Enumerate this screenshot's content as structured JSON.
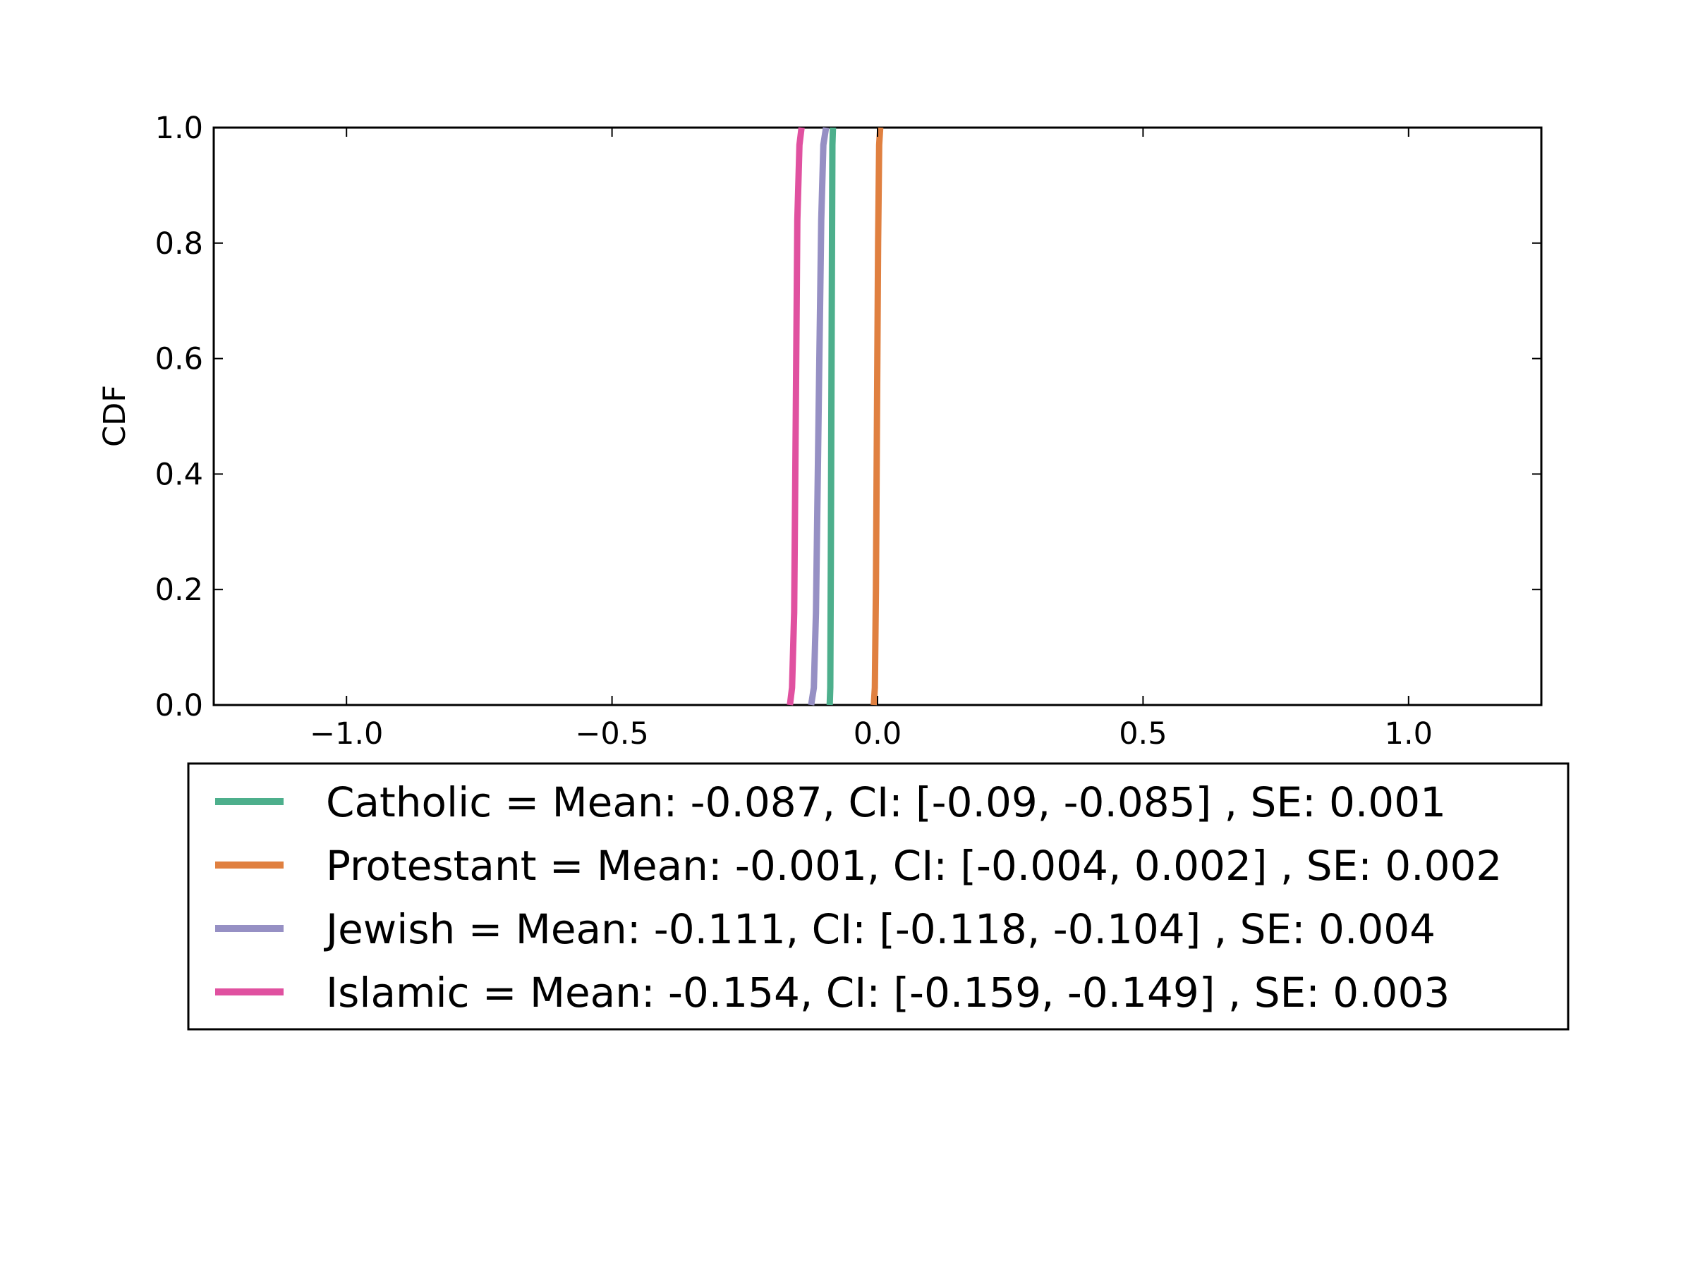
{
  "chart_data": {
    "type": "line",
    "title": "",
    "xlabel": "",
    "ylabel": "CDF",
    "xlim": [
      -1.25,
      1.25
    ],
    "ylim": [
      0.0,
      1.0
    ],
    "x_ticks": [
      -1.0,
      -0.5,
      0.0,
      0.5,
      1.0
    ],
    "x_tick_labels": [
      "−1.0",
      "−0.5",
      "0.0",
      "0.5",
      "1.0"
    ],
    "y_ticks": [
      0.0,
      0.2,
      0.4,
      0.6,
      0.8,
      1.0
    ],
    "y_tick_labels": [
      "0.0",
      "0.2",
      "0.4",
      "0.6",
      "0.8",
      "1.0"
    ],
    "grid": false,
    "legend_position": "below plot",
    "series": [
      {
        "key": "catholic",
        "label": "Catholic = Mean: -0.087, CI: [-0.09, -0.085] , SE: 0.001",
        "color": "#4daf8c",
        "mean": -0.087,
        "ci": [
          -0.09,
          -0.085
        ],
        "se": 0.001,
        "x": [
          -0.09,
          -0.089,
          -0.088,
          -0.087,
          -0.086,
          -0.085,
          -0.084
        ],
        "y": [
          0.0,
          0.03,
          0.25,
          0.5,
          0.75,
          0.97,
          1.0
        ]
      },
      {
        "key": "protestant",
        "label": "Protestant = Mean: -0.001, CI: [-0.004, 0.002] , SE: 0.002",
        "color": "#e08040",
        "mean": -0.001,
        "ci": [
          -0.004,
          0.002
        ],
        "se": 0.002,
        "x": [
          -0.007,
          -0.005,
          -0.003,
          -0.001,
          0.001,
          0.003,
          0.005
        ],
        "y": [
          0.0,
          0.03,
          0.2,
          0.5,
          0.8,
          0.97,
          1.0
        ]
      },
      {
        "key": "jewish",
        "label": "Jewish = Mean: -0.111, CI: [-0.118, -0.104] , SE: 0.004",
        "color": "#9690c4",
        "mean": -0.111,
        "ci": [
          -0.118,
          -0.104
        ],
        "se": 0.004,
        "x": [
          -0.125,
          -0.12,
          -0.116,
          -0.111,
          -0.106,
          -0.102,
          -0.097
        ],
        "y": [
          0.0,
          0.03,
          0.16,
          0.5,
          0.84,
          0.97,
          1.0
        ]
      },
      {
        "key": "islamic",
        "label": "Islamic = Mean: -0.154, CI: [-0.159, -0.149] , SE: 0.003",
        "color": "#e051a0",
        "mean": -0.154,
        "ci": [
          -0.159,
          -0.149
        ],
        "se": 0.003,
        "x": [
          -0.165,
          -0.161,
          -0.157,
          -0.154,
          -0.151,
          -0.147,
          -0.143
        ],
        "y": [
          0.0,
          0.03,
          0.16,
          0.5,
          0.84,
          0.97,
          1.0
        ]
      }
    ]
  }
}
